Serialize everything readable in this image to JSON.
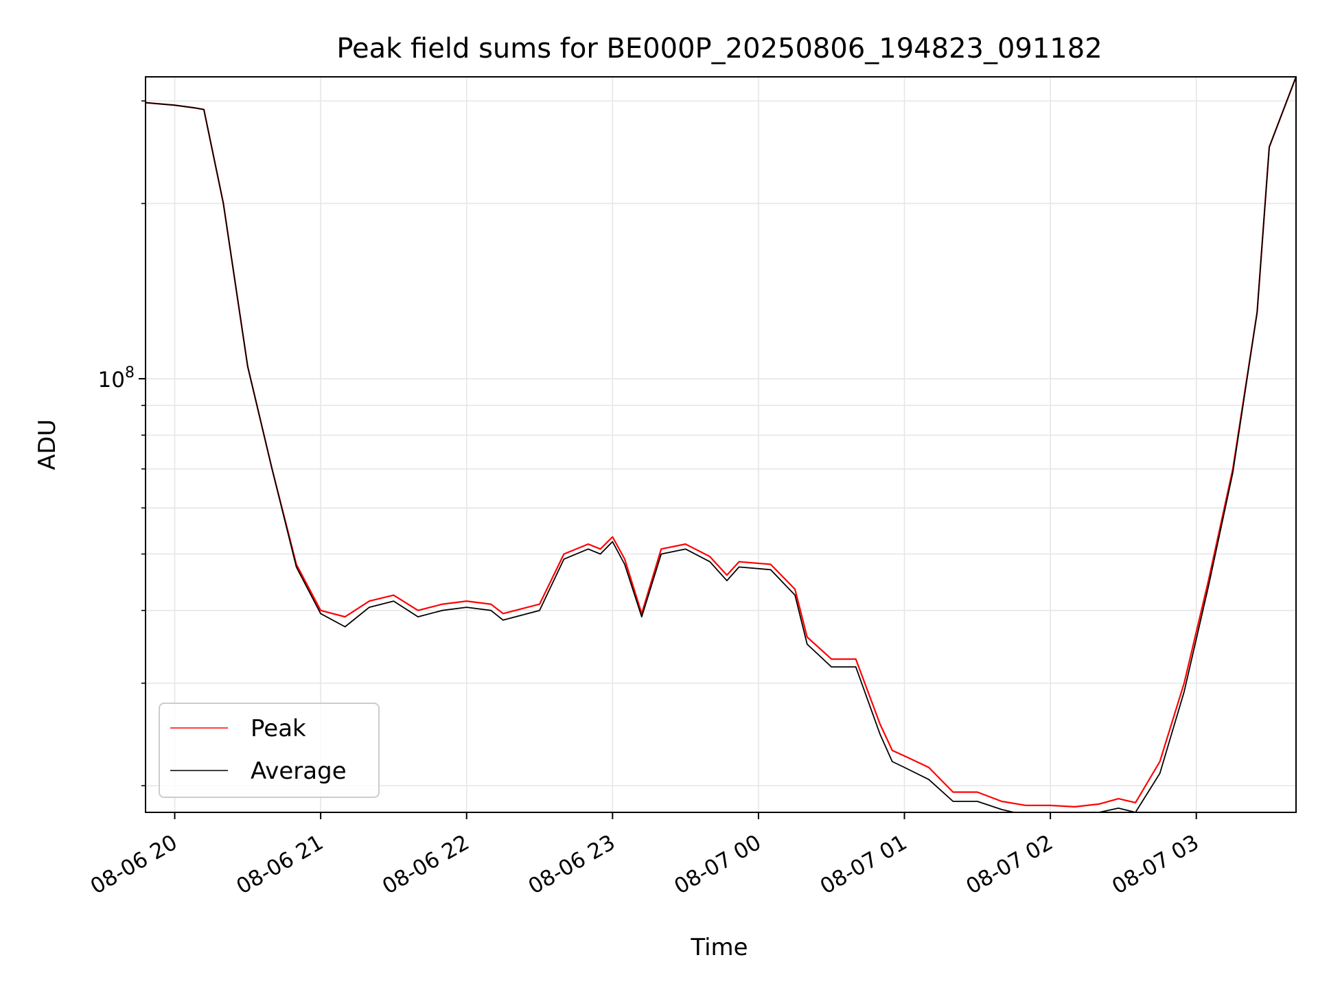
{
  "chart_data": {
    "type": "line",
    "title": "Peak field sums for BE000P_20250806_194823_091182",
    "xlabel": "Time",
    "ylabel": "ADU",
    "yscale": "log",
    "xlim": [
      "2025-08-06 19:48",
      "2025-08-07 03:41"
    ],
    "ylim": [
      18000000.0,
      330000000.0
    ],
    "grid": true,
    "legend_position": "lower-left",
    "x_tick_labels": [
      "08-06 20",
      "08-06 21",
      "08-06 22",
      "08-06 23",
      "08-07 00",
      "08-07 01",
      "08-07 02",
      "08-07 03"
    ],
    "x_ticks": [
      "2025-08-06 20:00",
      "2025-08-06 21:00",
      "2025-08-06 22:00",
      "2025-08-06 23:00",
      "2025-08-07 00:00",
      "2025-08-07 01:00",
      "2025-08-07 02:00",
      "2025-08-07 03:00"
    ],
    "y_tick_label": "10^8",
    "y_tick_value": 100000000.0,
    "y_minor_ticks": [
      20000000.0,
      30000000.0,
      40000000.0,
      50000000.0,
      60000000.0,
      70000000.0,
      80000000.0,
      90000000.0,
      200000000.0,
      300000000.0
    ],
    "series": [
      {
        "name": "Peak",
        "color": "#ff0000",
        "x": [
          "2025-08-06 19:48",
          "2025-08-06 20:00",
          "2025-08-06 20:08",
          "2025-08-06 20:12",
          "2025-08-06 20:20",
          "2025-08-06 20:30",
          "2025-08-06 20:40",
          "2025-08-06 20:50",
          "2025-08-06 21:00",
          "2025-08-06 21:10",
          "2025-08-06 21:20",
          "2025-08-06 21:30",
          "2025-08-06 21:40",
          "2025-08-06 21:50",
          "2025-08-06 22:00",
          "2025-08-06 22:10",
          "2025-08-06 22:15",
          "2025-08-06 22:30",
          "2025-08-06 22:40",
          "2025-08-06 22:50",
          "2025-08-06 22:55",
          "2025-08-06 23:00",
          "2025-08-06 23:05",
          "2025-08-06 23:12",
          "2025-08-06 23:20",
          "2025-08-06 23:30",
          "2025-08-06 23:40",
          "2025-08-06 23:47",
          "2025-08-06 23:52",
          "2025-08-07 00:05",
          "2025-08-07 00:15",
          "2025-08-07 00:20",
          "2025-08-07 00:30",
          "2025-08-07 00:40",
          "2025-08-07 00:50",
          "2025-08-07 00:55",
          "2025-08-07 01:00",
          "2025-08-07 01:10",
          "2025-08-07 01:20",
          "2025-08-07 01:30",
          "2025-08-07 01:40",
          "2025-08-07 01:50",
          "2025-08-07 02:00",
          "2025-08-07 02:10",
          "2025-08-07 02:20",
          "2025-08-07 02:28",
          "2025-08-07 02:35",
          "2025-08-07 02:45",
          "2025-08-07 02:55",
          "2025-08-07 03:05",
          "2025-08-07 03:15",
          "2025-08-07 03:25",
          "2025-08-07 03:30",
          "2025-08-07 03:41"
        ],
        "values": [
          298000000.0,
          295000000.0,
          292000000.0,
          290000000.0,
          200000000.0,
          105000000.0,
          70000000.0,
          48000000.0,
          40000000.0,
          39000000.0,
          41500000.0,
          42500000.0,
          40000000.0,
          41000000.0,
          41500000.0,
          41000000.0,
          39500000.0,
          41000000.0,
          50000000.0,
          52000000.0,
          51000000.0,
          53500000.0,
          49000000.0,
          39500000.0,
          51000000.0,
          52000000.0,
          49500000.0,
          46000000.0,
          48500000.0,
          48000000.0,
          43500000.0,
          36000000.0,
          33000000.0,
          33000000.0,
          25500000.0,
          23000000.0,
          22500000.0,
          21500000.0,
          19500000.0,
          19500000.0,
          18800000.0,
          18500000.0,
          18500000.0,
          18400000.0,
          18600000.0,
          19000000.0,
          18700000.0,
          22000000.0,
          30000000.0,
          45000000.0,
          70000000.0,
          130000000.0,
          250000000.0,
          330000000.0
        ]
      },
      {
        "name": "Average",
        "color": "#000000",
        "x": [
          "2025-08-06 19:48",
          "2025-08-06 20:00",
          "2025-08-06 20:08",
          "2025-08-06 20:12",
          "2025-08-06 20:20",
          "2025-08-06 20:30",
          "2025-08-06 20:40",
          "2025-08-06 20:50",
          "2025-08-06 21:00",
          "2025-08-06 21:10",
          "2025-08-06 21:20",
          "2025-08-06 21:30",
          "2025-08-06 21:40",
          "2025-08-06 21:50",
          "2025-08-06 22:00",
          "2025-08-06 22:10",
          "2025-08-06 22:15",
          "2025-08-06 22:30",
          "2025-08-06 22:40",
          "2025-08-06 22:50",
          "2025-08-06 22:55",
          "2025-08-06 23:00",
          "2025-08-06 23:05",
          "2025-08-06 23:12",
          "2025-08-06 23:20",
          "2025-08-06 23:30",
          "2025-08-06 23:40",
          "2025-08-06 23:47",
          "2025-08-06 23:52",
          "2025-08-07 00:05",
          "2025-08-07 00:15",
          "2025-08-07 00:20",
          "2025-08-07 00:30",
          "2025-08-07 00:40",
          "2025-08-07 00:50",
          "2025-08-07 00:55",
          "2025-08-07 01:00",
          "2025-08-07 01:10",
          "2025-08-07 01:20",
          "2025-08-07 01:30",
          "2025-08-07 01:40",
          "2025-08-07 01:50",
          "2025-08-07 02:00",
          "2025-08-07 02:10",
          "2025-08-07 02:20",
          "2025-08-07 02:28",
          "2025-08-07 02:35",
          "2025-08-07 02:45",
          "2025-08-07 02:55",
          "2025-08-07 03:05",
          "2025-08-07 03:15",
          "2025-08-07 03:25",
          "2025-08-07 03:30",
          "2025-08-07 03:41"
        ],
        "values": [
          298000000.0,
          295000000.0,
          292000000.0,
          290000000.0,
          200000000.0,
          105000000.0,
          70000000.0,
          47500000.0,
          39500000.0,
          37500000.0,
          40500000.0,
          41500000.0,
          39000000.0,
          40000000.0,
          40500000.0,
          40000000.0,
          38500000.0,
          40000000.0,
          49000000.0,
          51000000.0,
          50000000.0,
          52500000.0,
          48000000.0,
          39000000.0,
          50000000.0,
          51000000.0,
          48500000.0,
          45000000.0,
          47500000.0,
          47000000.0,
          42500000.0,
          35000000.0,
          32000000.0,
          32000000.0,
          24500000.0,
          22000000.0,
          21500000.0,
          20500000.0,
          18800000.0,
          18800000.0,
          18200000.0,
          17800000.0,
          17800000.0,
          17700000.0,
          18000000.0,
          18300000.0,
          18000000.0,
          21000000.0,
          29000000.0,
          44000000.0,
          69000000.0,
          130000000.0,
          250000000.0,
          330000000.0
        ]
      }
    ]
  }
}
